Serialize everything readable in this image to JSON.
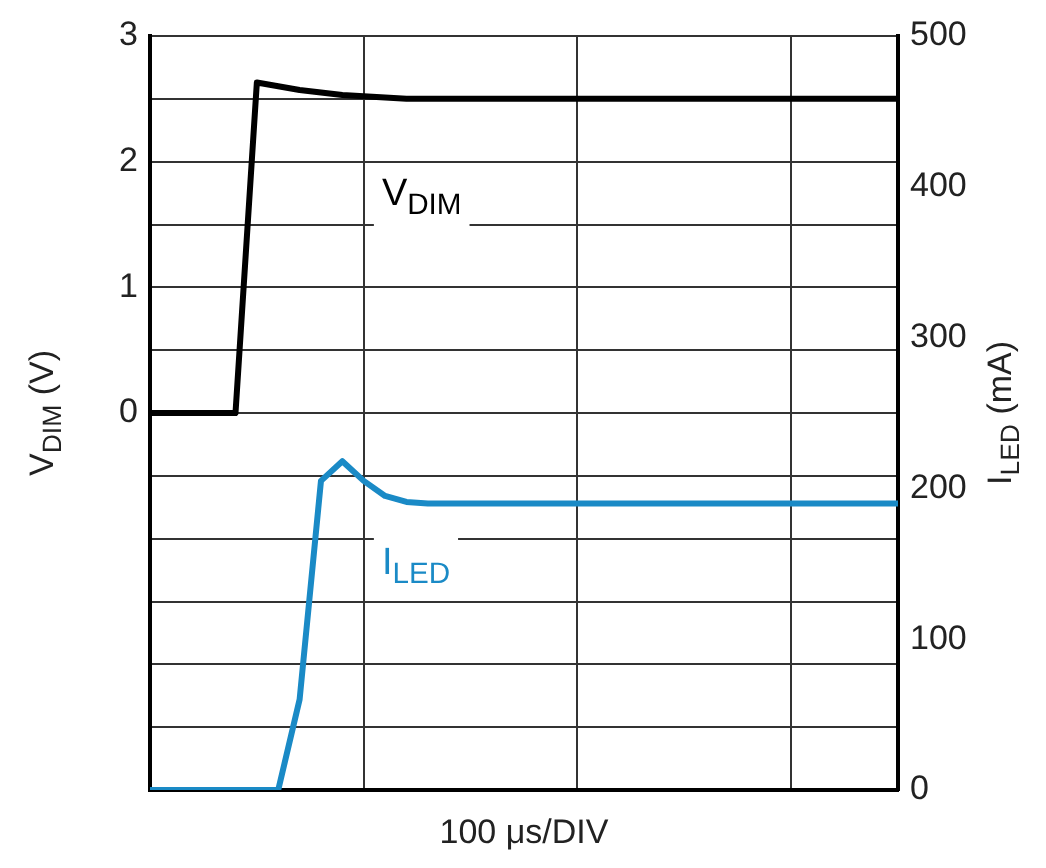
{
  "chart_data": {
    "type": "line",
    "xlabel": "100 μs/DIV",
    "ylabel": "V$_{DIM}$ (V)",
    "y2label": "I$_{LED}$ (mA)",
    "categories": [
      null,
      null,
      null,
      null,
      null,
      null,
      null,
      null,
      null,
      null,
      null,
      null,
      null,
      null,
      null,
      null,
      null,
      null,
      null,
      null,
      null,
      null,
      null,
      null,
      null,
      null,
      null,
      null,
      null,
      null,
      null,
      null,
      null,
      null,
      null,
      null
    ],
    "series": [
      {
        "name": "V$_{DIM}$",
        "color": "#000000",
        "values": [
          0,
          0,
          0,
          0,
          0,
          2.63,
          2.6,
          2.57,
          2.55,
          2.53,
          2.52,
          2.51,
          2.5,
          2.5,
          2.5,
          2.5,
          2.5,
          2.5,
          2.5,
          2.5,
          2.5,
          2.5,
          2.5,
          2.5,
          2.5,
          2.5,
          2.5,
          2.5,
          2.5,
          2.5,
          2.5,
          2.5,
          2.5,
          2.5,
          2.5,
          2.5
        ]
      },
      {
        "name": "I$_{LED}$",
        "color": "#1a8ac6",
        "axis": "y2",
        "values": [
          0,
          0,
          0,
          0,
          0,
          0,
          0,
          60,
          205,
          218,
          205,
          195,
          191,
          190,
          190,
          190,
          190,
          190,
          190,
          190,
          190,
          190,
          190,
          190,
          190,
          190,
          190,
          190,
          190,
          190,
          190,
          190,
          190,
          190,
          190,
          190
        ]
      }
    ],
    "ylim": [
      -3,
      3
    ],
    "yticks": [
      {
        "value": -3,
        "label": null
      },
      {
        "value": -2.5,
        "label": null
      },
      {
        "value": -2,
        "label": null
      },
      {
        "value": -1.5,
        "label": null
      },
      {
        "value": -1,
        "label": null
      },
      {
        "value": -0.5,
        "label": null
      },
      0,
      {
        "value": 0.5,
        "label": null
      },
      1,
      {
        "value": 1.5,
        "label": null
      },
      2,
      {
        "value": 2.5,
        "label": null
      },
      3
    ],
    "y2lim": [
      0,
      500
    ],
    "y2ticks": [
      0,
      100,
      200,
      300,
      400,
      500
    ],
    "grid": true,
    "legend": false,
    "marker": "none",
    "line_style": "solid"
  }
}
